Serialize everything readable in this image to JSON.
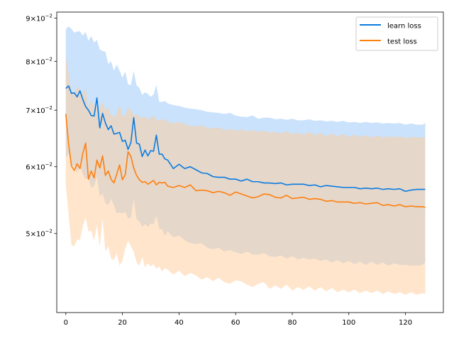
{
  "chart_data": {
    "type": "line",
    "title": "",
    "xlabel": "",
    "ylabel": "",
    "yscale": "log",
    "xlim": [
      -3.2,
      133.4
    ],
    "ylim": [
      0.0403,
      0.0915
    ],
    "grid": false,
    "legend_position": "top-right",
    "x_ticks": [
      0,
      20,
      40,
      60,
      80,
      100,
      120
    ],
    "x_tick_labels": [
      "0",
      "20",
      "40",
      "60",
      "80",
      "100",
      "120"
    ],
    "y_ticks": [
      0.05,
      0.06,
      0.07,
      0.08,
      0.09
    ],
    "y_tick_labels": [
      {
        "mantissa": "5",
        "base": "×10",
        "exp": "−2"
      },
      {
        "mantissa": "6",
        "base": "×10",
        "exp": "−2"
      },
      {
        "mantissa": "7",
        "base": "×10",
        "exp": "−2"
      },
      {
        "mantissa": "8",
        "base": "×10",
        "exp": "−2"
      },
      {
        "mantissa": "9",
        "base": "×10",
        "exp": "−2"
      }
    ],
    "x_key": [
      0,
      1,
      2,
      3,
      4,
      5,
      6,
      7,
      8,
      9,
      10,
      11,
      12,
      13,
      14,
      15,
      16,
      17,
      18,
      19,
      20,
      21,
      22,
      23,
      24,
      25,
      26,
      27,
      28,
      29,
      30,
      31,
      32,
      33,
      34,
      35,
      36,
      38,
      40,
      42,
      44,
      46,
      48,
      50,
      52,
      54,
      56,
      58,
      60,
      62,
      64,
      66,
      68,
      70,
      72,
      74,
      76,
      78,
      80,
      82,
      84,
      86,
      88,
      90,
      92,
      94,
      96,
      98,
      100,
      102,
      104,
      106,
      108,
      110,
      112,
      114,
      116,
      118,
      120,
      122,
      124,
      126,
      127
    ],
    "series": [
      {
        "name": "learn loss",
        "color": "#1f77b4",
        "line_color": "#0a7be0",
        "band_color": "#9ecbf7",
        "mean": [
          0.0743,
          0.0748,
          0.0733,
          0.0734,
          0.0726,
          0.0738,
          0.0721,
          0.0707,
          0.07,
          0.069,
          0.0689,
          0.0724,
          0.0667,
          0.0694,
          0.0676,
          0.0664,
          0.0671,
          0.0656,
          0.0657,
          0.0659,
          0.0643,
          0.0645,
          0.0629,
          0.0641,
          0.0686,
          0.064,
          0.0638,
          0.0617,
          0.0628,
          0.0618,
          0.0627,
          0.0626,
          0.0654,
          0.0621,
          0.0621,
          0.0613,
          0.0611,
          0.0597,
          0.0604,
          0.0597,
          0.06,
          0.0595,
          0.059,
          0.0589,
          0.0584,
          0.0583,
          0.0583,
          0.058,
          0.058,
          0.0577,
          0.058,
          0.0576,
          0.0576,
          0.0574,
          0.0574,
          0.0573,
          0.0574,
          0.0571,
          0.0572,
          0.0572,
          0.0572,
          0.057,
          0.0571,
          0.0568,
          0.057,
          0.0569,
          0.0568,
          0.0567,
          0.0567,
          0.0567,
          0.0565,
          0.0566,
          0.0565,
          0.0566,
          0.0564,
          0.0565,
          0.0564,
          0.0565,
          0.0561,
          0.0563,
          0.0564,
          0.0564,
          0.0564
        ],
        "upper": [
          0.0873,
          0.088,
          0.0874,
          0.0865,
          0.0868,
          0.0868,
          0.0858,
          0.0867,
          0.0846,
          0.0857,
          0.0842,
          0.0848,
          0.0826,
          0.0823,
          0.0821,
          0.0794,
          0.08,
          0.078,
          0.0793,
          0.078,
          0.0765,
          0.0778,
          0.0751,
          0.075,
          0.078,
          0.0749,
          0.0744,
          0.073,
          0.0735,
          0.0732,
          0.0726,
          0.0731,
          0.075,
          0.0716,
          0.0716,
          0.0718,
          0.0713,
          0.071,
          0.0708,
          0.0705,
          0.0703,
          0.0702,
          0.07,
          0.0697,
          0.0696,
          0.0695,
          0.0693,
          0.0695,
          0.069,
          0.0688,
          0.0687,
          0.069,
          0.0684,
          0.0686,
          0.0686,
          0.0683,
          0.0684,
          0.0682,
          0.0684,
          0.0681,
          0.0681,
          0.0683,
          0.068,
          0.0681,
          0.0679,
          0.068,
          0.0678,
          0.068,
          0.0677,
          0.0678,
          0.0676,
          0.0678,
          0.0676,
          0.0677,
          0.0675,
          0.0676,
          0.0675,
          0.0676,
          0.0673,
          0.0675,
          0.0673,
          0.0673,
          0.0676
        ],
        "lower": [
          0.0613,
          0.0623,
          0.0602,
          0.0602,
          0.059,
          0.0602,
          0.0588,
          0.058,
          0.0581,
          0.0566,
          0.0569,
          0.0584,
          0.0553,
          0.0558,
          0.0543,
          0.054,
          0.055,
          0.054,
          0.0528,
          0.053,
          0.0528,
          0.0531,
          0.0521,
          0.0522,
          0.055,
          0.052,
          0.0517,
          0.0509,
          0.0513,
          0.0509,
          0.0514,
          0.0513,
          0.0525,
          0.0507,
          0.0506,
          0.0497,
          0.0503,
          0.0495,
          0.0497,
          0.0491,
          0.0487,
          0.0486,
          0.0487,
          0.0481,
          0.0479,
          0.0481,
          0.0476,
          0.0478,
          0.0475,
          0.0473,
          0.0476,
          0.0472,
          0.0472,
          0.0474,
          0.047,
          0.0469,
          0.0471,
          0.0467,
          0.047,
          0.0466,
          0.0468,
          0.0466,
          0.0467,
          0.0464,
          0.0466,
          0.0462,
          0.0465,
          0.0461,
          0.0464,
          0.046,
          0.0463,
          0.0459,
          0.0463,
          0.0459,
          0.0462,
          0.0458,
          0.0461,
          0.0459,
          0.0459,
          0.0458,
          0.0458,
          0.0459,
          0.0462
        ]
      },
      {
        "name": "test loss",
        "color": "#ff7f0e",
        "line_color": "#ff7f0e",
        "band_color": "#ffcc9a",
        "mean": [
          0.0693,
          0.0638,
          0.0601,
          0.0594,
          0.0605,
          0.0597,
          0.0622,
          0.064,
          0.058,
          0.0593,
          0.0582,
          0.0611,
          0.0598,
          0.0618,
          0.0586,
          0.0593,
          0.058,
          0.0574,
          0.0588,
          0.0603,
          0.0579,
          0.0587,
          0.0625,
          0.0617,
          0.0598,
          0.0586,
          0.0579,
          0.0575,
          0.0576,
          0.0572,
          0.0575,
          0.0578,
          0.0571,
          0.0575,
          0.0574,
          0.0575,
          0.0569,
          0.0567,
          0.057,
          0.0567,
          0.0571,
          0.0562,
          0.0563,
          0.0562,
          0.0559,
          0.0561,
          0.0559,
          0.0555,
          0.056,
          0.0557,
          0.0554,
          0.0551,
          0.0553,
          0.0557,
          0.0556,
          0.0552,
          0.0551,
          0.0555,
          0.055,
          0.0551,
          0.0552,
          0.0549,
          0.055,
          0.0549,
          0.0546,
          0.0547,
          0.0545,
          0.0545,
          0.0545,
          0.0543,
          0.0544,
          0.0542,
          0.0543,
          0.0544,
          0.054,
          0.0541,
          0.0539,
          0.0541,
          0.0538,
          0.0539,
          0.0538,
          0.0538,
          0.0537
        ],
        "upper": [
          0.081,
          0.0775,
          0.0738,
          0.0732,
          0.0748,
          0.074,
          0.073,
          0.0745,
          0.0705,
          0.072,
          0.0708,
          0.0702,
          0.0706,
          0.0716,
          0.07,
          0.0705,
          0.069,
          0.0688,
          0.0694,
          0.071,
          0.069,
          0.0689,
          0.0705,
          0.07,
          0.069,
          0.0692,
          0.0688,
          0.0686,
          0.0689,
          0.0682,
          0.0686,
          0.069,
          0.0682,
          0.068,
          0.0684,
          0.0681,
          0.0679,
          0.0675,
          0.0678,
          0.0674,
          0.0671,
          0.067,
          0.0672,
          0.0667,
          0.0666,
          0.0668,
          0.0663,
          0.0665,
          0.0662,
          0.0664,
          0.0661,
          0.0663,
          0.066,
          0.0662,
          0.0659,
          0.066,
          0.0657,
          0.0661,
          0.0656,
          0.0658,
          0.0655,
          0.066,
          0.0654,
          0.0658,
          0.0652,
          0.0657,
          0.0652,
          0.0656,
          0.0651,
          0.0655,
          0.0651,
          0.0654,
          0.065,
          0.0653,
          0.065,
          0.0652,
          0.065,
          0.0652,
          0.0649,
          0.0651,
          0.065,
          0.065,
          0.065
        ],
        "lower": [
          0.057,
          0.0527,
          0.0484,
          0.0483,
          0.0492,
          0.0491,
          0.051,
          0.0522,
          0.0503,
          0.0504,
          0.049,
          0.0511,
          0.0482,
          0.052,
          0.0476,
          0.0483,
          0.0467,
          0.0465,
          0.0474,
          0.0458,
          0.0464,
          0.048,
          0.049,
          0.0483,
          0.0476,
          0.0462,
          0.0458,
          0.0469,
          0.0456,
          0.0461,
          0.0457,
          0.046,
          0.0454,
          0.0457,
          0.0451,
          0.0455,
          0.0453,
          0.0447,
          0.0452,
          0.0445,
          0.0449,
          0.0446,
          0.0441,
          0.0444,
          0.0439,
          0.0443,
          0.0438,
          0.0436,
          0.044,
          0.0439,
          0.0435,
          0.0432,
          0.0436,
          0.0438,
          0.043,
          0.0434,
          0.043,
          0.0435,
          0.0428,
          0.0432,
          0.0429,
          0.0433,
          0.0428,
          0.0432,
          0.0427,
          0.0431,
          0.0426,
          0.0429,
          0.0426,
          0.0429,
          0.0425,
          0.0428,
          0.0425,
          0.0428,
          0.0424,
          0.0427,
          0.0424,
          0.0426,
          0.0423,
          0.0426,
          0.0423,
          0.0425,
          0.0424
        ]
      }
    ]
  }
}
